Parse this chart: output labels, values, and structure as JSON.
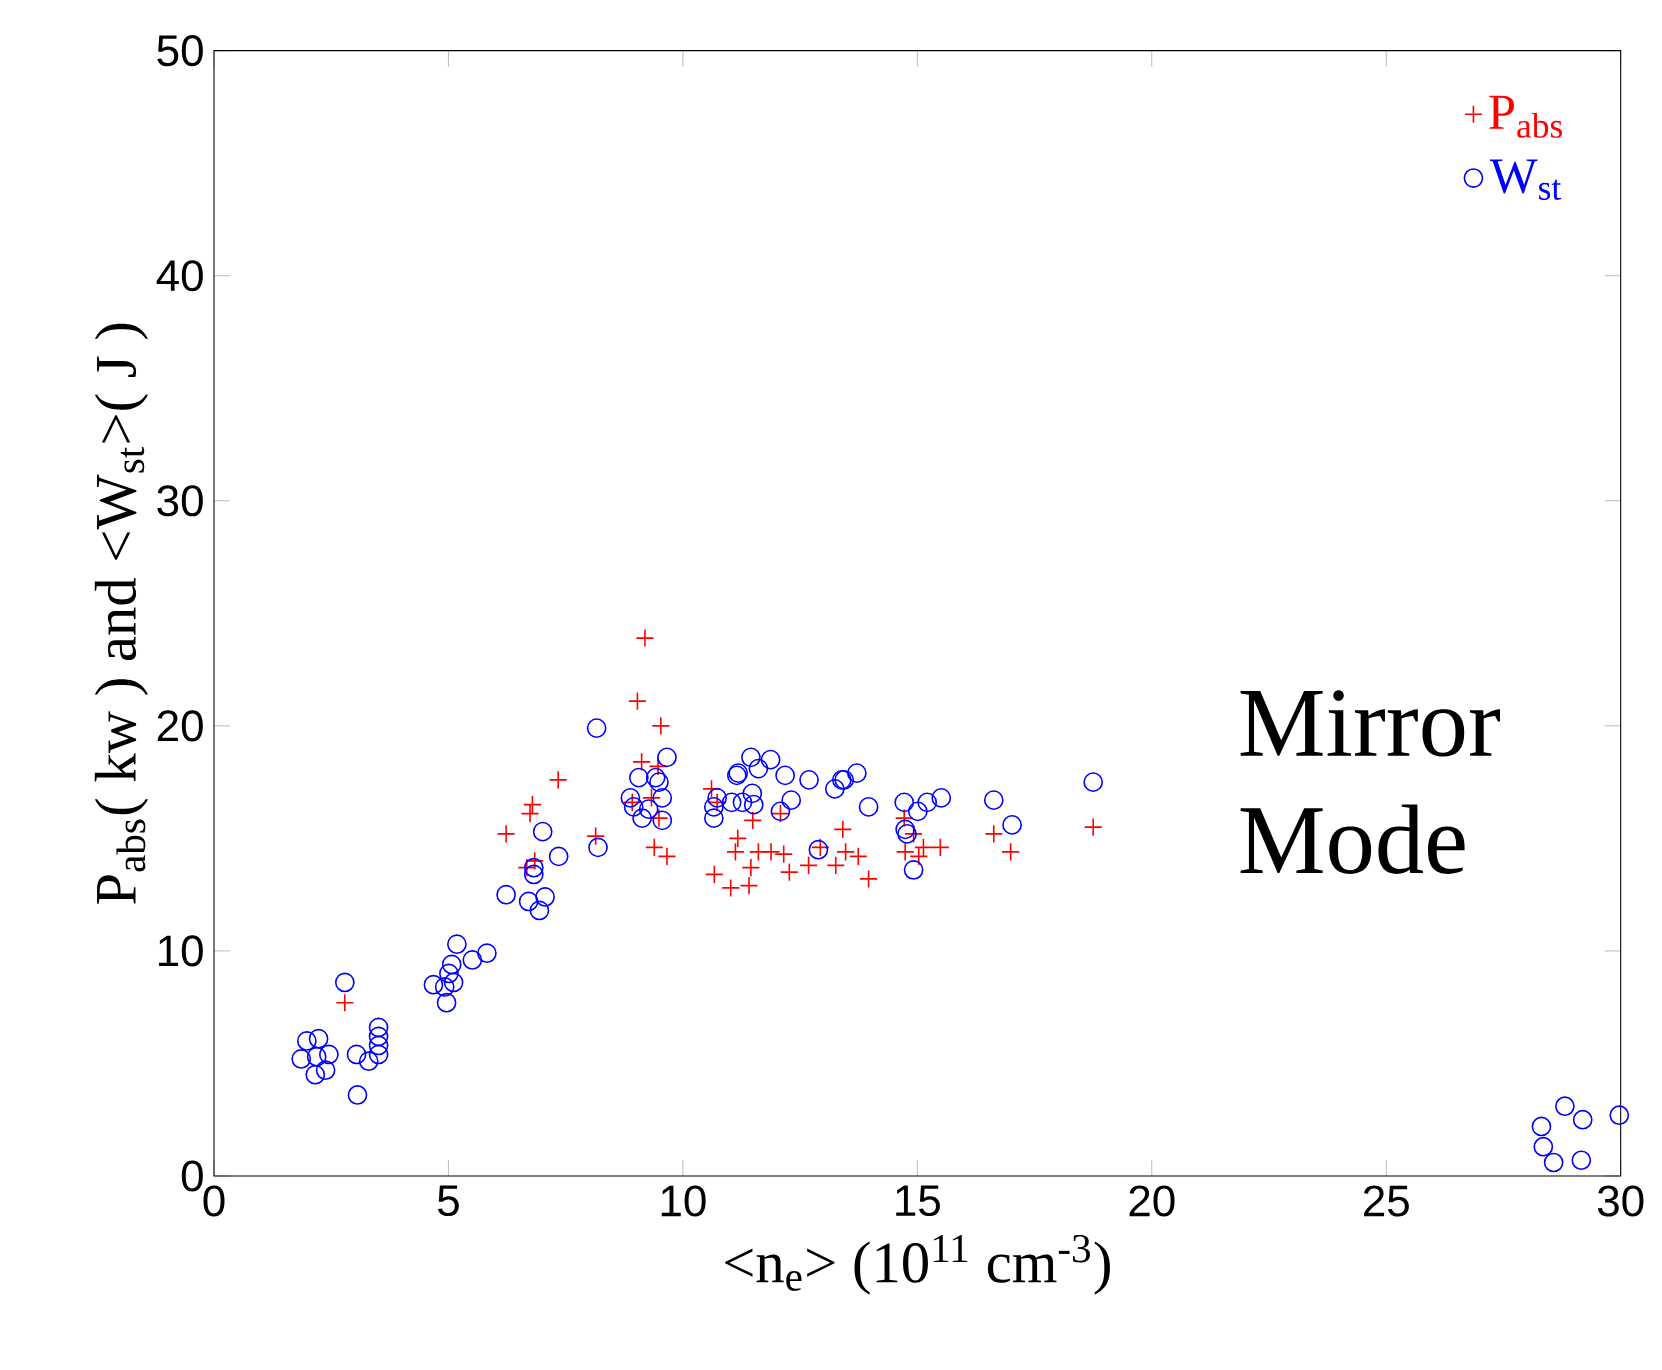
{
  "chart_data": {
    "type": "scatter",
    "xlabel": "<n$_{e}$> (10$^{11}$ cm$^{-3}$)",
    "ylabel": "P$_{abs}$( kw ) and <W$_{st}$>( J )",
    "xlim": [
      0,
      30
    ],
    "ylim": [
      0,
      50
    ],
    "xticks": [
      0,
      5,
      10,
      15,
      20,
      25,
      30
    ],
    "yticks": [
      0,
      10,
      20,
      30,
      40,
      50
    ],
    "legend": "top right",
    "annotations": [
      "Mirror Mode"
    ],
    "series": [
      {
        "name": "P$_{abs}$",
        "color": "#ff0000",
        "marker": "cross",
        "x": [
          9.19,
          9.03,
          9.53,
          7.34,
          9.12,
          9.47,
          8.92,
          9.33,
          9.49,
          6.79,
          6.74,
          6.23,
          8.14,
          9.39,
          9.66,
          6.84,
          6.67,
          2.79,
          10.61,
          10.73,
          11.49,
          11.17,
          11.12,
          11.61,
          11.88,
          12.15,
          12.08,
          10.67,
          11.02,
          11.45,
          11.41,
          12.27,
          12.68,
          12.93,
          13.26,
          13.41,
          13.47,
          13.74,
          13.96,
          14.72,
          14.74,
          14.92,
          15.13,
          15.49,
          15.03,
          16.63,
          16.99,
          18.75
        ],
        "values": [
          23.9,
          21.1,
          20.0,
          17.6,
          18.4,
          18.2,
          16.6,
          16.8,
          15.9,
          16.5,
          16.1,
          15.2,
          15.1,
          14.6,
          14.2,
          14.0,
          13.7,
          7.7,
          17.2,
          16.6,
          15.8,
          15.0,
          14.4,
          14.4,
          14.4,
          14.3,
          16.1,
          13.4,
          12.8,
          13.7,
          12.9,
          13.5,
          13.8,
          14.6,
          13.8,
          15.4,
          14.4,
          14.2,
          13.2,
          15.9,
          14.4,
          15.2,
          14.6,
          14.6,
          14.2,
          15.2,
          14.4,
          15.5
        ]
      },
      {
        "name": "W$_{st}$",
        "color": "#0000ff",
        "marker": "circle",
        "x": [
          8.16,
          9.66,
          9.06,
          9.42,
          9.49,
          8.88,
          9.56,
          8.95,
          9.27,
          9.13,
          9.56,
          7.01,
          7.35,
          8.19,
          6.82,
          6.82,
          6.23,
          7.06,
          6.71,
          6.94,
          5.18,
          5.82,
          5.51,
          5.07,
          5.01,
          5.11,
          4.68,
          4.92,
          4.96,
          2.79,
          3.51,
          3.51,
          3.51,
          3.51,
          3.3,
          3.04,
          3.06,
          1.98,
          2.23,
          1.86,
          2.19,
          2.45,
          2.16,
          2.38,
          10.73,
          10.66,
          10.66,
          11.04,
          11.18,
          11.15,
          11.45,
          11.61,
          11.87,
          11.48,
          11.27,
          11.51,
          12.18,
          12.31,
          12.08,
          12.69,
          13.24,
          13.39,
          13.44,
          13.71,
          13.96,
          12.89,
          14.72,
          15.01,
          15.21,
          15.51,
          14.74,
          14.78,
          14.92,
          16.63,
          17.02,
          18.75,
          28.31,
          28.81,
          29.19,
          28.35,
          28.57,
          29.16,
          29.97
        ],
        "values": [
          19.9,
          18.6,
          17.7,
          17.7,
          17.5,
          16.8,
          16.8,
          16.4,
          16.3,
          15.9,
          15.8,
          15.3,
          14.2,
          14.6,
          13.7,
          13.4,
          12.5,
          12.4,
          12.2,
          11.8,
          10.3,
          9.9,
          9.6,
          9.4,
          9.0,
          8.6,
          8.5,
          8.4,
          7.7,
          8.6,
          6.6,
          6.2,
          5.8,
          5.4,
          5.1,
          5.4,
          3.6,
          6.0,
          6.1,
          5.2,
          5.3,
          5.4,
          4.5,
          4.7,
          16.8,
          16.4,
          15.9,
          16.6,
          17.9,
          17.8,
          18.6,
          18.1,
          18.5,
          17.0,
          16.6,
          16.5,
          17.8,
          16.7,
          16.2,
          17.6,
          17.2,
          17.6,
          17.6,
          17.9,
          16.4,
          14.5,
          16.6,
          16.2,
          16.6,
          16.8,
          15.4,
          15.2,
          13.6,
          16.7,
          15.6,
          17.5,
          2.2,
          3.1,
          2.5,
          1.3,
          0.6,
          0.7,
          2.7
        ]
      }
    ]
  }
}
